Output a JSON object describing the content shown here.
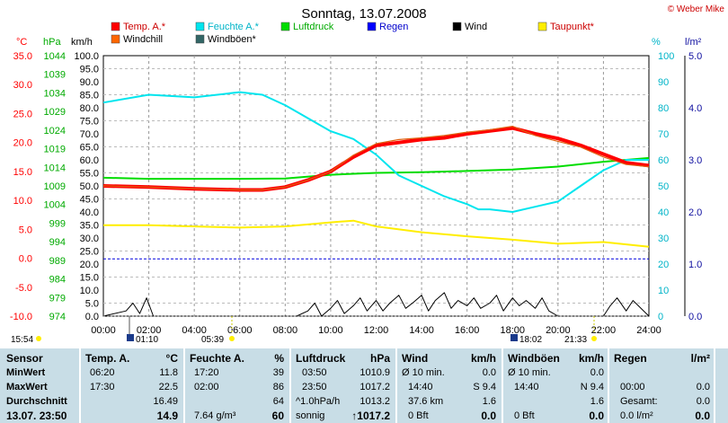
{
  "title": "Sonntag, 13.07.2008",
  "copyright": "© Weber Mike",
  "colors": {
    "temp": "#ff0000",
    "windchill": "#ff6600",
    "humidity": "#00e5ee",
    "pressure": "#00dd00",
    "rain": "#0000ff",
    "wind": "#000000",
    "gust": "#555555",
    "dewpoint": "#ffee00",
    "table_bg": "#c8dde6"
  },
  "legend": [
    {
      "label": "Temp. A.*",
      "color": "#ff0000"
    },
    {
      "label": "Windchill",
      "color": "#ff6600"
    },
    {
      "label": "Feuchte A.*",
      "color": "#00e5ee"
    },
    {
      "label": "Windböen*",
      "color": "#336666"
    },
    {
      "label": "Luftdruck",
      "color": "#00dd00"
    },
    {
      "label": "Regen",
      "color": "#0000ff"
    },
    {
      "label": "Wind",
      "color": "#000000"
    },
    {
      "label": "Taupunkt*",
      "color": "#ffee00"
    }
  ],
  "axis_units": {
    "temp": "°C",
    "pressure": "hPa",
    "wind": "km/h",
    "humidity": "%",
    "rain": "l/m²"
  },
  "sun_times": {
    "sunrise_label": "05:39",
    "sunset_label": "21:33",
    "moonrise_label": "01:10",
    "moonset_label": "18:02",
    "left_label": "15:54"
  },
  "chart_data": {
    "type": "line",
    "x_ticks": [
      "00:00",
      "02:00",
      "04:00",
      "06:00",
      "08:00",
      "10:00",
      "12:00",
      "14:00",
      "16:00",
      "18:00",
      "20:00",
      "22:00",
      "24:00"
    ],
    "xlim": [
      0,
      24
    ],
    "axes": {
      "temp": {
        "ticks": [
          "35.0",
          "30.0",
          "25.0",
          "20.0",
          "15.0",
          "10.0",
          "5.0",
          "0.0",
          "-5.0",
          "-10.0"
        ],
        "ylim": [
          -10,
          35
        ]
      },
      "pressure": {
        "ticks": [
          "1044",
          "1039",
          "1034",
          "1029",
          "1024",
          "1019",
          "1014",
          "1009",
          "1004",
          "999",
          "994",
          "989",
          "984",
          "979",
          "974"
        ],
        "ylim": [
          974,
          1044
        ]
      },
      "wind": {
        "ticks": [
          "100.0",
          "95.0",
          "90.0",
          "85.0",
          "80.0",
          "75.0",
          "70.0",
          "65.0",
          "60.0",
          "55.0",
          "50.0",
          "45.0",
          "40.0",
          "35.0",
          "30.0",
          "25.0",
          "20.0",
          "15.0",
          "10.0",
          "5.0",
          "0.0"
        ],
        "ylim": [
          0,
          100
        ]
      },
      "humidity": {
        "ticks": [
          "100",
          "90",
          "80",
          "70",
          "60",
          "50",
          "40",
          "30",
          "20",
          "10",
          "0"
        ],
        "ylim": [
          0,
          100
        ]
      },
      "rain": {
        "ticks": [
          "5.0",
          "4.0",
          "3.0",
          "2.0",
          "1.0",
          "0.0"
        ],
        "ylim": [
          0,
          5
        ]
      }
    },
    "series": [
      {
        "name": "Temp. A.*",
        "axis": "temp",
        "x": [
          0,
          2,
          4,
          6,
          7,
          8,
          9,
          10,
          11,
          12,
          13,
          14,
          15,
          16,
          17,
          18,
          19,
          20,
          21,
          22,
          23,
          24
        ],
        "values": [
          12.5,
          12.3,
          12.0,
          11.8,
          11.8,
          12.3,
          13.5,
          15.0,
          17.5,
          19.5,
          20.0,
          20.5,
          20.8,
          21.5,
          22.0,
          22.5,
          21.5,
          20.7,
          19.5,
          18.0,
          16.5,
          16.0
        ]
      },
      {
        "name": "Windchill",
        "axis": "temp",
        "x": [
          0,
          2,
          4,
          6,
          7,
          8,
          9,
          10,
          11,
          12,
          13,
          14,
          15,
          16,
          17,
          18,
          19,
          20,
          21,
          22,
          23,
          24
        ],
        "values": [
          12.5,
          12.3,
          12.0,
          11.8,
          11.8,
          12.3,
          13.5,
          15.0,
          17.8,
          19.8,
          20.5,
          20.8,
          21.2,
          21.8,
          22.2,
          22.8,
          21.2,
          20.2,
          19.2,
          17.5,
          16.2,
          15.8
        ]
      },
      {
        "name": "Feuchte A.*",
        "axis": "humidity",
        "x": [
          0,
          2,
          4,
          6,
          7,
          8,
          9,
          10,
          11,
          12,
          13,
          14,
          15,
          16,
          16.5,
          17,
          18,
          19,
          20,
          21,
          22,
          23,
          24
        ],
        "values": [
          82,
          85,
          84,
          86,
          85,
          81,
          76,
          71,
          68,
          62,
          54,
          50,
          46,
          43,
          41,
          41,
          40,
          42,
          44,
          50,
          56,
          60,
          60
        ]
      },
      {
        "name": "Luftdruck",
        "axis": "pressure",
        "x": [
          0,
          2,
          4,
          6,
          8,
          10,
          12,
          14,
          16,
          18,
          20,
          22,
          24
        ],
        "values": [
          1011.2,
          1010.9,
          1010.9,
          1010.9,
          1011.0,
          1012.0,
          1012.5,
          1012.7,
          1013.0,
          1013.4,
          1014.2,
          1015.5,
          1016.5
        ]
      },
      {
        "name": "Taupunkt*",
        "axis": "temp",
        "x": [
          0,
          2,
          4,
          6,
          8,
          10,
          11,
          12,
          14,
          16,
          18,
          20,
          22,
          24
        ],
        "values": [
          5.7,
          5.7,
          5.5,
          5.3,
          5.5,
          6.2,
          6.5,
          5.5,
          4.5,
          3.8,
          3.2,
          2.5,
          2.8,
          2.0
        ]
      },
      {
        "name": "Wind",
        "axis": "wind",
        "x": [
          0,
          1,
          1.3,
          1.6,
          1.9,
          2.2,
          3,
          4,
          5,
          6,
          7,
          8,
          8.5,
          9,
          9.3,
          9.6,
          10,
          10.3,
          10.6,
          11,
          11.3,
          11.6,
          12,
          12.3,
          12.6,
          13,
          13.3,
          13.6,
          14,
          14.3,
          14.6,
          15,
          15.3,
          15.6,
          16,
          16.3,
          16.6,
          17,
          17.3,
          17.6,
          18,
          18.3,
          18.6,
          19,
          19.3,
          19.6,
          20,
          20.5,
          21,
          21.5,
          22,
          22.3,
          22.6,
          23,
          23.3,
          24
        ],
        "values": [
          0,
          2,
          5,
          1,
          7,
          0,
          0,
          0,
          0,
          0,
          0,
          0,
          0,
          2,
          5,
          0,
          3,
          6,
          1,
          4,
          7,
          2,
          6,
          2,
          5,
          8,
          3,
          5,
          8,
          2,
          6,
          9,
          3,
          6,
          4,
          7,
          3,
          5,
          8,
          2,
          7,
          4,
          6,
          3,
          7,
          2,
          0,
          0,
          0,
          0,
          0,
          4,
          7,
          2,
          6,
          0
        ]
      },
      {
        "name": "Windböen*",
        "axis": "wind",
        "x": [
          0,
          4,
          8,
          12,
          16,
          20,
          24
        ],
        "values": [
          0,
          0,
          0,
          0,
          0,
          0,
          0
        ]
      }
    ],
    "rain_line": {
      "axis": "rain",
      "value": 1.1
    }
  },
  "table": {
    "sensor": {
      "header": "Sensor",
      "rows": [
        "MinWert",
        "MaxWert",
        "Durchschnitt"
      ],
      "footer": "13.07. 23:50"
    },
    "temp": {
      "header": "Temp. A.",
      "unit": "°C",
      "rows": [
        [
          "06:20",
          "11.8"
        ],
        [
          "17:30",
          "22.5"
        ],
        [
          "",
          "16.49"
        ]
      ],
      "current": "14.9"
    },
    "humidity": {
      "header": "Feuchte A.",
      "unit": "%",
      "rows": [
        [
          "17:20",
          "39"
        ],
        [
          "02:00",
          "86"
        ],
        [
          "",
          "64"
        ]
      ],
      "footer_left": "7.64 g/m³",
      "current": "60"
    },
    "pressure": {
      "header": "Luftdruck",
      "unit": "hPa",
      "rows": [
        [
          "03:50",
          "1010.9"
        ],
        [
          "23:50",
          "1017.2"
        ],
        [
          "^1.0hPa/h",
          "1013.2"
        ]
      ],
      "footer_left": "sonnig",
      "current": "↑1017.2"
    },
    "wind": {
      "header": "Wind",
      "unit": "km/h",
      "rows": [
        [
          "Ø 10 min.",
          "0.0"
        ],
        [
          "14:40",
          "S 9.4"
        ],
        [
          "37.6 km",
          "1.6"
        ]
      ],
      "footer_left": "0 Bft",
      "current": "0.0"
    },
    "gust": {
      "header": "Windböen",
      "unit": "km/h",
      "rows": [
        [
          "Ø 10 min.",
          "0.0"
        ],
        [
          "14:40",
          "N 9.4"
        ],
        [
          "",
          "1.6"
        ]
      ],
      "footer_left": "0 Bft",
      "current": "0.0"
    },
    "rain": {
      "header": "Regen",
      "unit": "l/m²",
      "rows": [
        [
          "",
          ""
        ],
        [
          "00:00",
          "0.0"
        ],
        [
          "Gesamt:",
          "0.0"
        ]
      ],
      "footer_left": "0.0 l/m²",
      "current": "0.0"
    }
  }
}
